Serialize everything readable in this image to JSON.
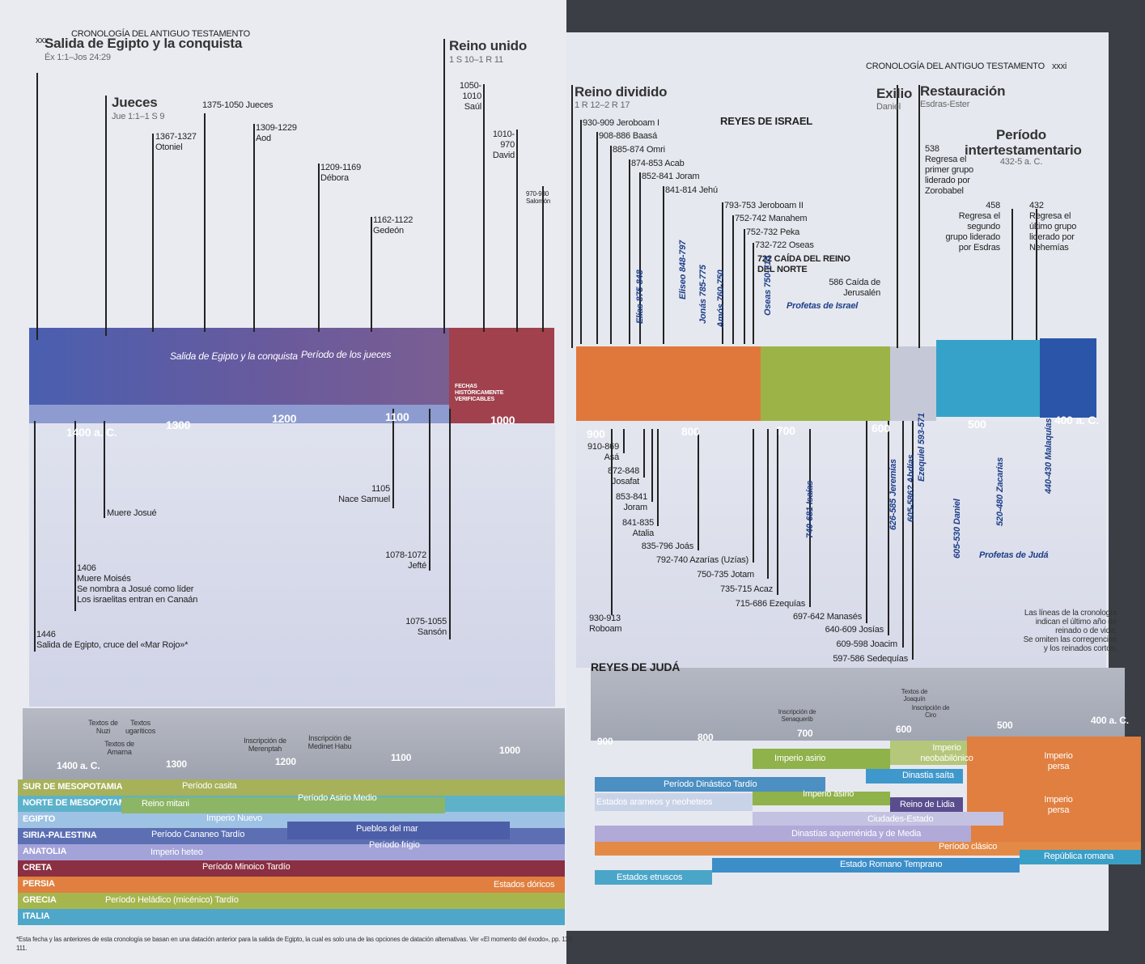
{
  "left_page": {
    "page_number": "xxx",
    "running_head": "CRONOLOGÍA DEL ANTIGUO TESTAMENTO",
    "eras": [
      {
        "title": "Salida de Egipto y la conquista",
        "ref": "Éx 1:1–Jos 24:29"
      },
      {
        "title": "Jueces",
        "ref": "Jue 1:1–1 S 9"
      },
      {
        "title": "Reino unido",
        "ref": "1 S 10–1 R 11"
      }
    ],
    "top_events": [
      [
        "1375-1050 Jueces"
      ],
      [
        "1367-1327",
        "Otoniel"
      ],
      [
        "1309-1229",
        "Aod"
      ],
      [
        "1209-1169",
        "Débora"
      ],
      [
        "1162-1122",
        "Gedeón"
      ],
      [
        "1050-",
        "1010",
        "Saúl"
      ],
      [
        "1010-",
        "970",
        "David"
      ],
      [
        "970-930",
        "Salomón"
      ]
    ],
    "band_labels": [
      "Salida de Egipto y la conquista",
      "Período de los jueces",
      "FECHAS HISTÓRICAMENTE VERIFICABLES"
    ],
    "axis": [
      "1400 a. C.",
      "1300",
      "1200",
      "1100",
      "1000"
    ],
    "bottom_events": [
      [
        "1446",
        "Salida de Egipto, cruce del «Mar Rojo»*"
      ],
      [
        "1406",
        "Muere Moisés",
        "Se nombra a Josué como líder",
        "Los israelitas entran en Canaán"
      ],
      [
        "Muere Josué"
      ],
      [
        "1105",
        "Nace Samuel"
      ],
      [
        "1078-1072",
        "Jefté"
      ],
      [
        "1075-1055",
        "Sansón"
      ]
    ],
    "lower_notes": [
      "Textos de Nuzi",
      "Textos ugaríticos",
      "Textos de Amarna",
      "Inscripción de Merenptah",
      "Inscripción de Medinet Habu"
    ],
    "lower_axis": [
      "1400 a. C.",
      "1300",
      "1200",
      "1100",
      "1000"
    ],
    "regions": [
      "SUR DE MESOPOTAMIA",
      "NORTE DE MESOPOTAMIA",
      "EGIPTO",
      "SIRIA-PALESTINA",
      "ANATOLIA",
      "CRETA",
      "PERSIA",
      "GRECIA",
      "ITALIA"
    ],
    "periods": [
      "Período casita",
      "Reino mitani",
      "Período Asirio Medio",
      "Imperio Nuevo",
      "Período Cananeo Tardío",
      "Pueblos del mar",
      "Período frigio",
      "Imperio heteo",
      "Período Minoico Tardío",
      "Estados dóricos",
      "Período Heládico (micénico) Tardío"
    ],
    "footnote": "*Esta fecha y las anteriores de esta cronología se basan en una datación anterior para la salida de Egipto, la cual es solo una de las opciones de datación alternativas. Ver «El momento del éxodo», pp. 110-111."
  },
  "right_page": {
    "running_head": "CRONOLOGÍA DEL ANTIGUO TESTAMENTO",
    "page_number": "xxxi",
    "eras": [
      {
        "title": "Reino dividido",
        "ref": "1 R 12–2 R 17"
      },
      {
        "title": "Exilio",
        "ref": "Daniel"
      },
      {
        "title": "Restauración",
        "ref": "Esdras-Ester"
      },
      {
        "title": "Período intertestamentario",
        "ref": "432-5 a. C."
      }
    ],
    "israel_heading": "REYES DE ISRAEL",
    "israel_kings": [
      "930-909 Jeroboam I",
      "908-886 Baasá",
      "885-874 Omri",
      "874-853 Acab",
      "852-841 Joram",
      "841-814 Jehú",
      "793-753 Jeroboam II",
      "752-742 Manahem",
      "752-732 Peka",
      "732-722 Oseas"
    ],
    "fall_north": [
      "722 CAÍDA DEL REINO",
      "DEL NORTE"
    ],
    "israel_prophets": [
      "Elías 875-848",
      "Eliseo 848-797",
      "Jonás 785-775",
      "Amós 760-750",
      "Oseas 750-715"
    ],
    "israel_prophets_label": "Profetas de Israel",
    "events": [
      [
        "586 Caída de",
        "Jerusalén"
      ],
      [
        "538",
        "Regresa el",
        "primer grupo",
        "liderado por",
        "Zorobabel"
      ],
      [
        "458",
        "Regresa el",
        "segundo",
        "grupo liderado",
        "por Esdras"
      ],
      [
        "432",
        "Regresa el",
        "último grupo",
        "liderado por",
        "Nehemías"
      ]
    ],
    "axis": [
      "900",
      "800",
      "700",
      "600",
      "500",
      "400 a. C."
    ],
    "judah_kings": [
      [
        "910-869",
        "Asá"
      ],
      [
        "872-848",
        "Josafat"
      ],
      [
        "853-841",
        "Joram"
      ],
      [
        "841-835",
        "Atalia"
      ],
      [
        "835-796 Joás"
      ],
      [
        "792-740 Azarías (Uzías)"
      ],
      [
        "750-735 Jotam"
      ],
      [
        "735-715 Acaz"
      ],
      [
        "715-686 Ezequías"
      ],
      [
        "697-642 Manasés"
      ],
      [
        "640-609 Josías"
      ],
      [
        "609-598 Joacim"
      ],
      [
        "597-586 Sedequías"
      ],
      [
        "930-913",
        "Roboam"
      ]
    ],
    "judah_heading": "REYES DE JUDÁ",
    "judah_prophets": [
      "740-681 Isaías",
      "626-585 Jeremías",
      "605-586? Abdías",
      "Ezequiel 593-571",
      "605-530 Daniel",
      "520-480 Zacarías",
      "440-430 Malaquías"
    ],
    "judah_prophets_label": "Profetas de Judá",
    "note": [
      "Las líneas de la cronología",
      "indican el último año de",
      "reinado o de vida.",
      "Se omiten las corregencias",
      "y los reinados cortos."
    ],
    "lower_notes": [
      "Inscripción de Senaquerib",
      "Textos de Joaquín",
      "Inscripción de Ciro"
    ],
    "lower_axis": [
      "900",
      "800",
      "700",
      "600",
      "500",
      "400 a. C."
    ],
    "periods": [
      "Imperio asirio",
      "Imperio neobabilónico",
      "Imperio persa",
      "Período Dinástico Tardío",
      "Dinastia saíta",
      "Estados arameos y neoheteos",
      "Imperio asirio",
      "Reino de Lidia",
      "Imperio persa",
      "Ciudades-Estado",
      "Dinastías aqueménida y de Media",
      "Período clásico",
      "Estado Romano Temprano",
      "República romana",
      "Estados etruscos"
    ]
  }
}
